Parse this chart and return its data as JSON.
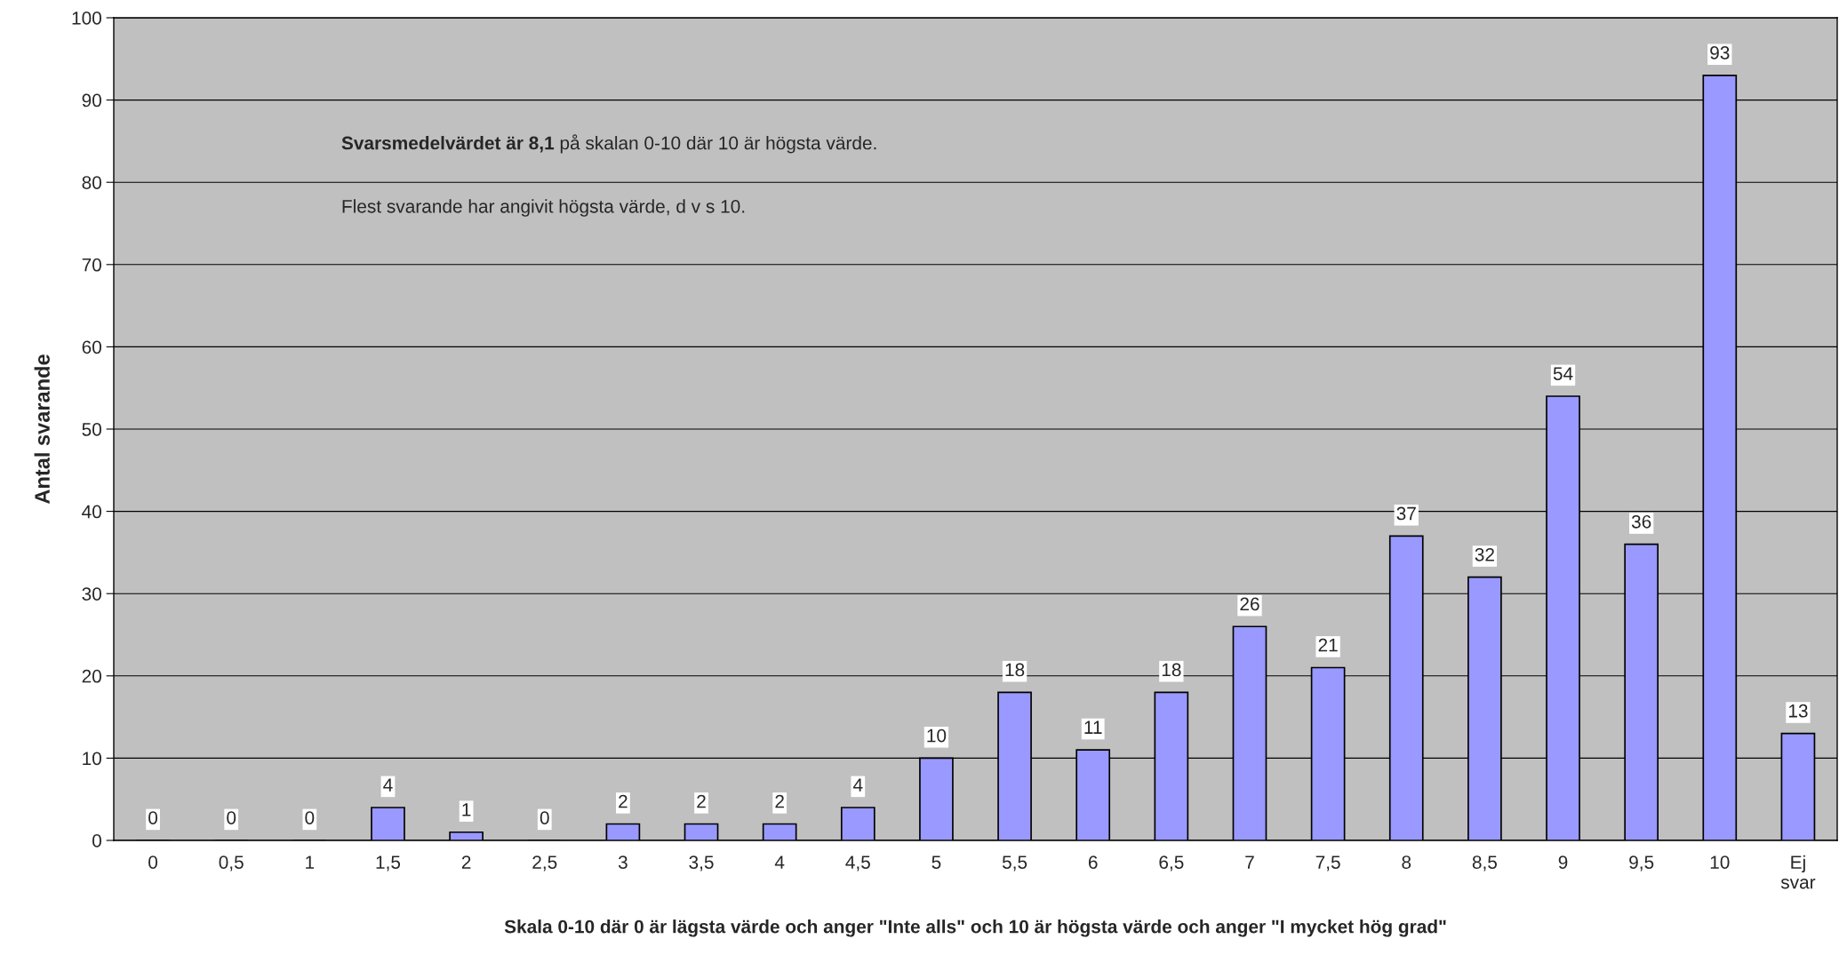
{
  "chart_data": {
    "type": "bar",
    "xlabel": "Skala 0-10 där 0 är lägsta värde och anger \"Inte alls\" och 10 är högsta värde och anger \"I mycket hög grad\"",
    "ylabel": "Antal svarande",
    "categories": [
      "0",
      "0,5",
      "1",
      "1,5",
      "2",
      "2,5",
      "3",
      "3,5",
      "4",
      "4,5",
      "5",
      "5,5",
      "6",
      "6,5",
      "7",
      "7,5",
      "8",
      "8,5",
      "9",
      "9,5",
      "10",
      "Ej\nsvar"
    ],
    "values": [
      0,
      0,
      0,
      4,
      1,
      0,
      2,
      2,
      2,
      4,
      10,
      18,
      11,
      18,
      26,
      21,
      37,
      32,
      54,
      36,
      93,
      13
    ],
    "color": "#9999ff",
    "ylim": [
      0,
      100
    ],
    "yticks": [
      0,
      10,
      20,
      30,
      40,
      50,
      60,
      70,
      80,
      90,
      100
    ],
    "grid": "y",
    "data_labels": true,
    "annotations": [
      "Svarsmedelvärdet är 8,1",
      "på skalan 0-10 där 10 är högsta värde.",
      "Flest svarande har angivit högsta värde, d v s 10."
    ]
  }
}
